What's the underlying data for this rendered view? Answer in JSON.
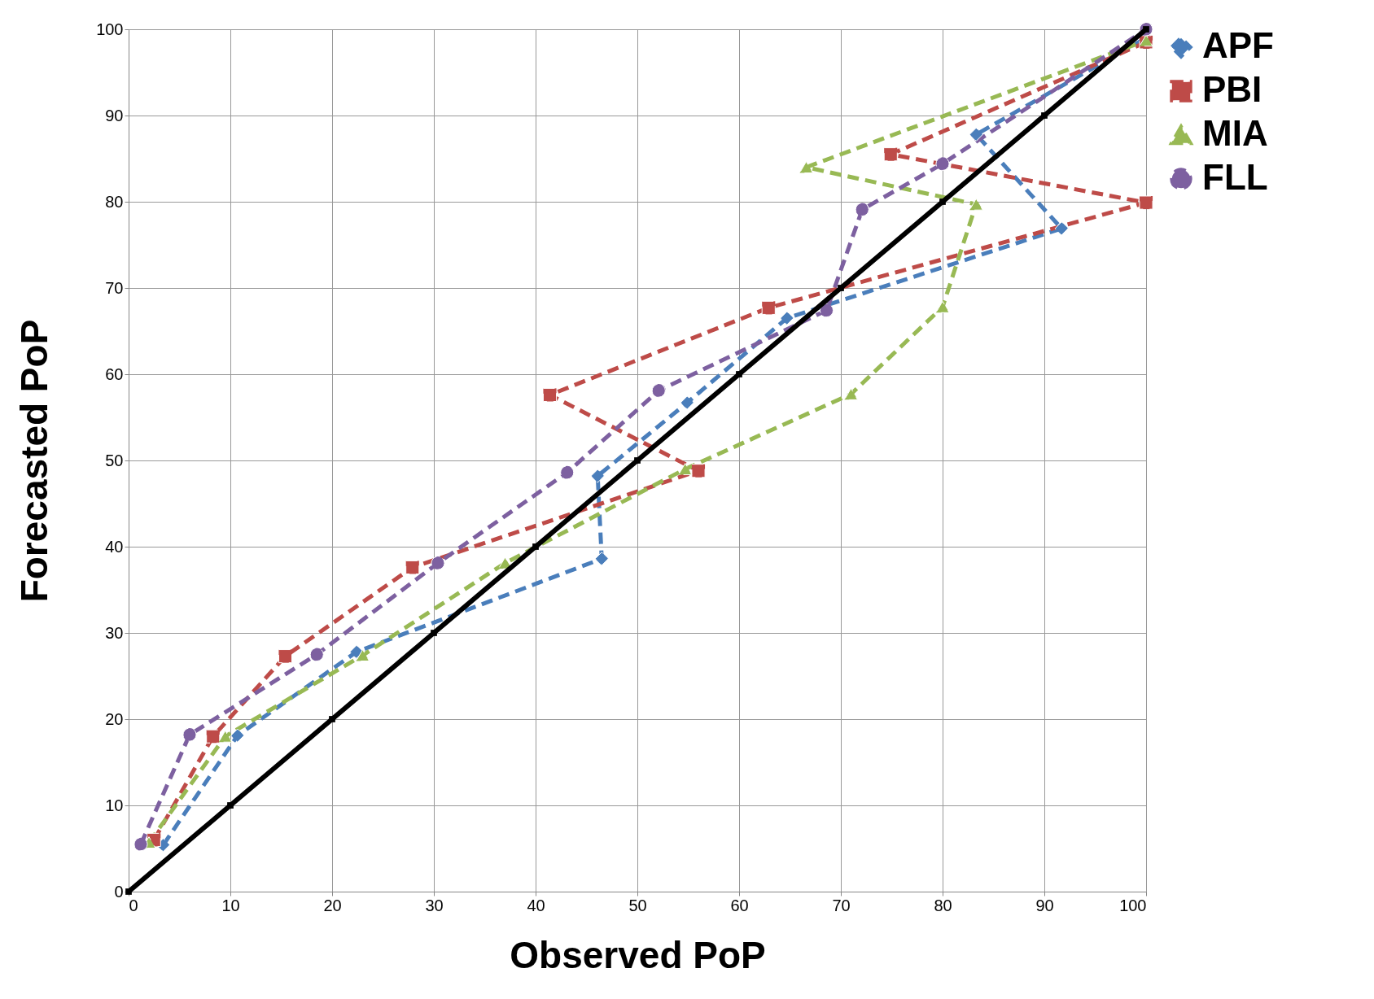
{
  "chart_data": {
    "type": "line",
    "xlabel": "Observed PoP",
    "ylabel": "Forecasted PoP",
    "xlim": [
      0,
      100
    ],
    "ylim": [
      0,
      100
    ],
    "xticks": [
      0,
      10,
      20,
      30,
      40,
      50,
      60,
      70,
      80,
      90,
      100
    ],
    "yticks": [
      0,
      10,
      20,
      30,
      40,
      50,
      60,
      70,
      80,
      90,
      100
    ],
    "grid": true,
    "legend": "right",
    "line_style": "dashed",
    "series": [
      {
        "name": "APF",
        "color": "#4a7ebb",
        "marker": "diamond",
        "x": [
          3.4,
          10.7,
          22.4,
          46.5,
          46.1,
          54.9,
          64.7,
          91.7,
          83.3,
          100
        ],
        "values": [
          5.4,
          18.1,
          27.8,
          38.6,
          48.2,
          56.7,
          66.5,
          76.9,
          87.8,
          99
        ]
      },
      {
        "name": "PBI",
        "color": "#be4b48",
        "marker": "square",
        "x": [
          2.5,
          8.3,
          15.4,
          27.9,
          56,
          41.4,
          62.9,
          100,
          74.9,
          100
        ],
        "values": [
          6,
          18,
          27.3,
          37.6,
          48.8,
          57.6,
          67.7,
          79.9,
          85.5,
          98.5
        ]
      },
      {
        "name": "MIA",
        "color": "#98b954",
        "marker": "triangle",
        "x": [
          2,
          9.5,
          23,
          37,
          54.7,
          71,
          80,
          83.3,
          66.6,
          100
        ],
        "values": [
          5.7,
          18,
          27.4,
          38.1,
          49,
          57.7,
          67.8,
          79.7,
          84,
          98.7
        ]
      },
      {
        "name": "FLL",
        "color": "#7d60a0",
        "marker": "circle",
        "x": [
          1.2,
          6,
          18.5,
          30.4,
          43.1,
          52.1,
          68.6,
          72.1,
          80,
          100
        ],
        "values": [
          5.5,
          18.2,
          27.5,
          38.1,
          48.6,
          58.1,
          67.4,
          79.1,
          84.4,
          100
        ]
      },
      {
        "color": "#000000",
        "marker": "square",
        "line_style": "solid",
        "x": [
          0,
          10,
          20,
          30,
          40,
          50,
          60,
          70,
          80,
          90,
          100
        ],
        "values": [
          0,
          10,
          20,
          30,
          40,
          50,
          60,
          70,
          80,
          90,
          100
        ]
      }
    ]
  }
}
